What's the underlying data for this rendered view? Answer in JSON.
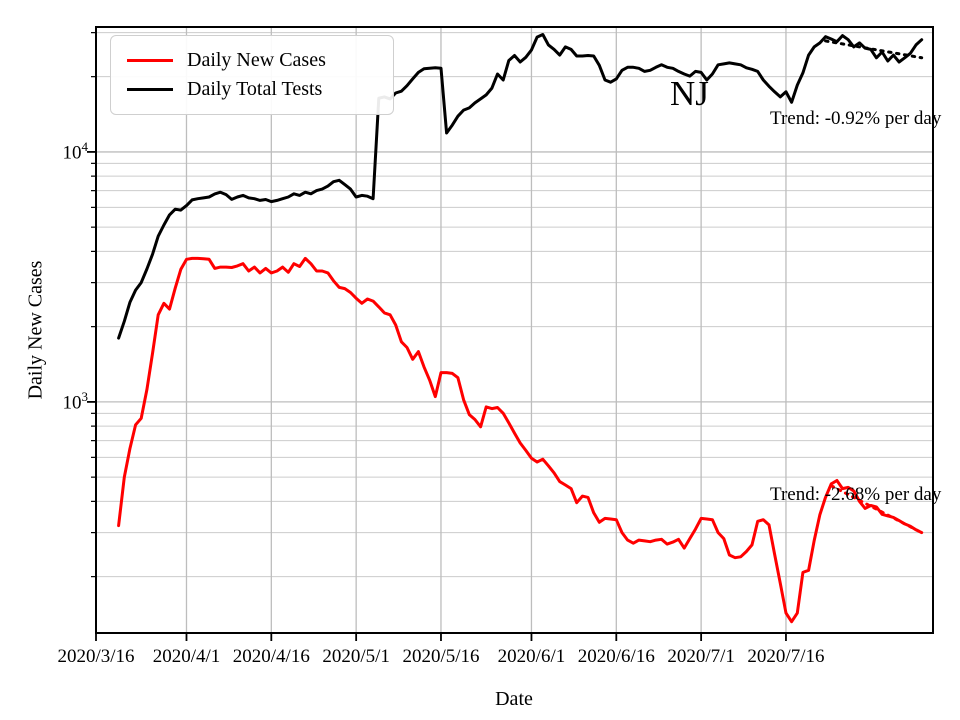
{
  "annotations": {
    "state_label": "NJ",
    "black_trend_label": "Trend: -0.92% per day",
    "red_trend_label": "Trend: -2.68% per day"
  },
  "legend": {
    "items": [
      {
        "label": "Daily New Cases",
        "color": "#ff0000"
      },
      {
        "label": "Daily Total Tests",
        "color": "#000000"
      }
    ]
  },
  "chart_data": {
    "type": "line",
    "xlabel": "Date",
    "ylabel": "Daily New Cases",
    "x_scale": "date",
    "y_scale": "log",
    "grid": "both",
    "legend_position": "upper left",
    "xlim": [
      "2020/3/16",
      "2020/8/11"
    ],
    "ylim": [
      119,
      31600
    ],
    "x_ticks": [
      "2020/3/16",
      "2020/4/1",
      "2020/4/16",
      "2020/5/1",
      "2020/5/16",
      "2020/6/1",
      "2020/6/16",
      "2020/7/1",
      "2020/7/16"
    ],
    "y_major_ticks": [
      {
        "base": "10",
        "exp": "4",
        "value": 10000
      },
      {
        "base": "10",
        "exp": "3",
        "value": 1000
      }
    ],
    "series": [
      {
        "name": "Daily New Cases",
        "color": "#ff0000",
        "start_date": "2020/3/20",
        "frequency": "daily",
        "values": [
          320,
          500,
          650,
          810,
          860,
          1120,
          1570,
          2230,
          2480,
          2350,
          2850,
          3390,
          3720,
          3750,
          3750,
          3740,
          3720,
          3420,
          3460,
          3460,
          3450,
          3500,
          3570,
          3340,
          3460,
          3280,
          3420,
          3280,
          3340,
          3460,
          3300,
          3570,
          3480,
          3750,
          3570,
          3340,
          3340,
          3280,
          3050,
          2870,
          2840,
          2740,
          2600,
          2480,
          2580,
          2530,
          2400,
          2270,
          2230,
          2030,
          1740,
          1650,
          1480,
          1590,
          1380,
          1220,
          1050,
          1310,
          1310,
          1300,
          1250,
          1020,
          890,
          850,
          795,
          955,
          940,
          950,
          900,
          824,
          750,
          685,
          640,
          595,
          575,
          590,
          555,
          520,
          480,
          465,
          450,
          395,
          420,
          415,
          360,
          330,
          342,
          340,
          338,
          300,
          280,
          272,
          280,
          278,
          276,
          280,
          282,
          270,
          275,
          282,
          260,
          284,
          310,
          342,
          340,
          338,
          300,
          284,
          244,
          238,
          240,
          252,
          268,
          333,
          338,
          322,
          246,
          188,
          143,
          132,
          143,
          208,
          212,
          279,
          354,
          415,
          470,
          485,
          450,
          455,
          440,
          400,
          375,
          385,
          380,
          355,
          350,
          345,
          335,
          325,
          318,
          308,
          300
        ]
      },
      {
        "name": "Daily Total Tests",
        "color": "#000000",
        "start_date": "2020/3/20",
        "frequency": "daily",
        "values": [
          1800,
          2100,
          2500,
          2800,
          3000,
          3400,
          3900,
          4600,
          5100,
          5600,
          5900,
          5850,
          6100,
          6430,
          6500,
          6550,
          6600,
          6790,
          6900,
          6750,
          6460,
          6600,
          6700,
          6550,
          6500,
          6400,
          6450,
          6330,
          6400,
          6500,
          6600,
          6800,
          6700,
          6900,
          6800,
          7000,
          7100,
          7300,
          7600,
          7700,
          7400,
          7100,
          6600,
          6700,
          6650,
          6500,
          16400,
          16600,
          16300,
          17200,
          17500,
          18400,
          19600,
          20800,
          21500,
          21600,
          21700,
          21600,
          11900,
          12800,
          13900,
          14700,
          15000,
          15700,
          16300,
          16900,
          18000,
          20500,
          19400,
          23200,
          24300,
          22900,
          23900,
          25600,
          28800,
          29500,
          26800,
          25700,
          24400,
          26300,
          25700,
          24200,
          24200,
          24300,
          24200,
          22200,
          19400,
          19000,
          19600,
          21200,
          21800,
          21800,
          21600,
          21000,
          21200,
          21800,
          22300,
          21800,
          21600,
          21000,
          20500,
          20100,
          21000,
          20800,
          19400,
          20500,
          22300,
          22500,
          22700,
          22500,
          22300,
          21700,
          21400,
          21000,
          19400,
          18300,
          17400,
          16600,
          17400,
          15800,
          18500,
          20700,
          24400,
          26300,
          27300,
          28900,
          28300,
          27600,
          29200,
          28100,
          26300,
          27300,
          26000,
          25700,
          23800,
          25100,
          23100,
          24400,
          22900,
          23800,
          24800,
          26800,
          28100
        ]
      }
    ],
    "trend_lines": [
      {
        "series": "Daily Total Tests",
        "rate_percent_per_day": -0.92,
        "color": "#000000",
        "style": "dotted",
        "start_date": "2020/7/23",
        "start_value": 27800,
        "end_date": "2020/8/9",
        "end_value": 23800
      },
      {
        "series": "Daily New Cases",
        "rate_percent_per_day": -2.68,
        "color": "#ff0000",
        "style": "dotted",
        "start_date": "2020/7/24",
        "start_value": 462,
        "end_date": "2020/8/9",
        "end_value": 300
      }
    ]
  }
}
